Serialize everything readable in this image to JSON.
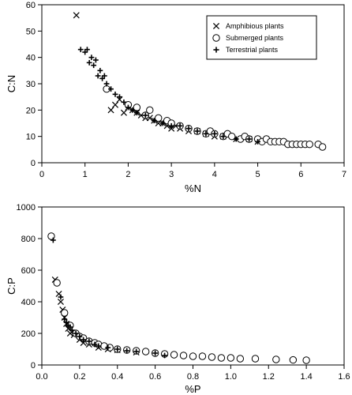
{
  "chart_data": [
    {
      "type": "scatter",
      "xlabel": "%N",
      "ylabel": "C:N",
      "xlim": [
        0,
        7
      ],
      "ylim": [
        0,
        60
      ],
      "xticks": [
        "0",
        "1",
        "2",
        "3",
        "4",
        "5",
        "6",
        "7"
      ],
      "yticks": [
        "0",
        "10",
        "20",
        "30",
        "40",
        "50",
        "60"
      ],
      "grid": false,
      "legend_position": "top-right",
      "legend": [
        "Amphibious plants",
        "Submerged plants",
        "Terrestrial plants"
      ],
      "series": [
        {
          "name": "Amphibious plants",
          "marker": "x",
          "points": [
            [
              0.8,
              56
            ],
            [
              1.6,
              20
            ],
            [
              1.7,
              22
            ],
            [
              1.8,
              24
            ],
            [
              1.9,
              19
            ],
            [
              2.0,
              21
            ],
            [
              2.1,
              20
            ],
            [
              2.2,
              19
            ],
            [
              2.3,
              18
            ],
            [
              2.4,
              17
            ],
            [
              2.5,
              17
            ],
            [
              2.6,
              16
            ],
            [
              2.7,
              15
            ],
            [
              2.8,
              15
            ],
            [
              2.9,
              14
            ],
            [
              3.0,
              13
            ],
            [
              3.1,
              14
            ],
            [
              3.2,
              13
            ],
            [
              3.4,
              12
            ],
            [
              3.6,
              12
            ],
            [
              3.8,
              11
            ],
            [
              4.0,
              10
            ],
            [
              4.2,
              10
            ],
            [
              4.5,
              9
            ],
            [
              4.8,
              9
            ],
            [
              5.0,
              8
            ]
          ]
        },
        {
          "name": "Submerged plants",
          "marker": "o",
          "points": [
            [
              1.5,
              28
            ],
            [
              2.0,
              22
            ],
            [
              2.2,
              21
            ],
            [
              2.4,
              18
            ],
            [
              2.5,
              20
            ],
            [
              2.7,
              17
            ],
            [
              2.9,
              16
            ],
            [
              3.0,
              15
            ],
            [
              3.2,
              14
            ],
            [
              3.4,
              13
            ],
            [
              3.6,
              12
            ],
            [
              3.8,
              11
            ],
            [
              3.9,
              12
            ],
            [
              4.0,
              11
            ],
            [
              4.2,
              10
            ],
            [
              4.3,
              11
            ],
            [
              4.4,
              10
            ],
            [
              4.6,
              9
            ],
            [
              4.7,
              10
            ],
            [
              4.8,
              9
            ],
            [
              5.0,
              9
            ],
            [
              5.1,
              8
            ],
            [
              5.2,
              9
            ],
            [
              5.3,
              8
            ],
            [
              5.4,
              8
            ],
            [
              5.5,
              8
            ],
            [
              5.6,
              8
            ],
            [
              5.7,
              7
            ],
            [
              5.8,
              7
            ],
            [
              5.9,
              7
            ],
            [
              6.0,
              7
            ],
            [
              6.1,
              7
            ],
            [
              6.2,
              7
            ],
            [
              6.4,
              7
            ],
            [
              6.5,
              6
            ]
          ]
        },
        {
          "name": "Terrestrial plants",
          "marker": "+",
          "points": [
            [
              0.9,
              43
            ],
            [
              1.0,
              42
            ],
            [
              1.05,
              43
            ],
            [
              1.1,
              38
            ],
            [
              1.15,
              40
            ],
            [
              1.2,
              37
            ],
            [
              1.25,
              39
            ],
            [
              1.3,
              33
            ],
            [
              1.35,
              35
            ],
            [
              1.4,
              32
            ],
            [
              1.45,
              33
            ],
            [
              1.5,
              30
            ],
            [
              1.6,
              28
            ],
            [
              1.7,
              26
            ],
            [
              1.8,
              25
            ],
            [
              1.9,
              23
            ],
            [
              2.0,
              21
            ],
            [
              2.1,
              20
            ],
            [
              2.2,
              19
            ],
            [
              2.4,
              18
            ],
            [
              2.6,
              16
            ],
            [
              2.8,
              15
            ],
            [
              3.0,
              14
            ],
            [
              3.2,
              14
            ],
            [
              3.4,
              13
            ],
            [
              3.6,
              12
            ],
            [
              3.8,
              11
            ],
            [
              4.0,
              11
            ],
            [
              4.2,
              10
            ],
            [
              4.5,
              9
            ],
            [
              4.8,
              9
            ],
            [
              5.0,
              8
            ]
          ]
        }
      ]
    },
    {
      "type": "scatter",
      "xlabel": "%P",
      "ylabel": "C:P",
      "xlim": [
        0,
        1.6
      ],
      "ylim": [
        0,
        1000
      ],
      "xticks": [
        "0.0",
        "0.2",
        "0.4",
        "0.6",
        "0.8",
        "1.0",
        "1.2",
        "1.4",
        "1.6"
      ],
      "yticks": [
        "0",
        "200",
        "400",
        "600",
        "800",
        "1000"
      ],
      "grid": false,
      "series": [
        {
          "name": "Amphibious plants",
          "marker": "x",
          "points": [
            [
              0.07,
              540
            ],
            [
              0.09,
              450
            ],
            [
              0.1,
              400
            ],
            [
              0.11,
              350
            ],
            [
              0.12,
              300
            ],
            [
              0.13,
              260
            ],
            [
              0.14,
              230
            ],
            [
              0.15,
              200
            ],
            [
              0.17,
              190
            ],
            [
              0.2,
              160
            ],
            [
              0.22,
              140
            ],
            [
              0.25,
              130
            ],
            [
              0.3,
              110
            ],
            [
              0.35,
              100
            ],
            [
              0.4,
              95
            ],
            [
              0.5,
              80
            ]
          ]
        },
        {
          "name": "Submerged plants",
          "marker": "o",
          "points": [
            [
              0.05,
              815
            ],
            [
              0.08,
              520
            ],
            [
              0.12,
              330
            ],
            [
              0.15,
              250
            ],
            [
              0.18,
              200
            ],
            [
              0.2,
              180
            ],
            [
              0.22,
              170
            ],
            [
              0.25,
              150
            ],
            [
              0.28,
              140
            ],
            [
              0.3,
              130
            ],
            [
              0.33,
              120
            ],
            [
              0.36,
              110
            ],
            [
              0.4,
              100
            ],
            [
              0.45,
              95
            ],
            [
              0.5,
              90
            ],
            [
              0.55,
              85
            ],
            [
              0.6,
              75
            ],
            [
              0.65,
              70
            ],
            [
              0.7,
              65
            ],
            [
              0.75,
              60
            ],
            [
              0.8,
              55
            ],
            [
              0.85,
              55
            ],
            [
              0.9,
              50
            ],
            [
              0.95,
              45
            ],
            [
              1.0,
              45
            ],
            [
              1.05,
              40
            ],
            [
              1.13,
              40
            ],
            [
              1.24,
              35
            ],
            [
              1.33,
              32
            ],
            [
              1.4,
              30
            ]
          ]
        },
        {
          "name": "Terrestrial plants",
          "marker": "+",
          "points": [
            [
              0.06,
              790
            ],
            [
              0.1,
              430
            ],
            [
              0.12,
              290
            ],
            [
              0.13,
              270
            ],
            [
              0.14,
              250
            ],
            [
              0.15,
              240
            ],
            [
              0.16,
              220
            ],
            [
              0.18,
              200
            ],
            [
              0.2,
              180
            ],
            [
              0.22,
              160
            ],
            [
              0.25,
              150
            ],
            [
              0.28,
              130
            ],
            [
              0.3,
              120
            ],
            [
              0.35,
              110
            ],
            [
              0.4,
              100
            ],
            [
              0.45,
              90
            ],
            [
              0.5,
              85
            ],
            [
              0.6,
              75
            ],
            [
              0.65,
              60
            ]
          ]
        }
      ]
    }
  ]
}
